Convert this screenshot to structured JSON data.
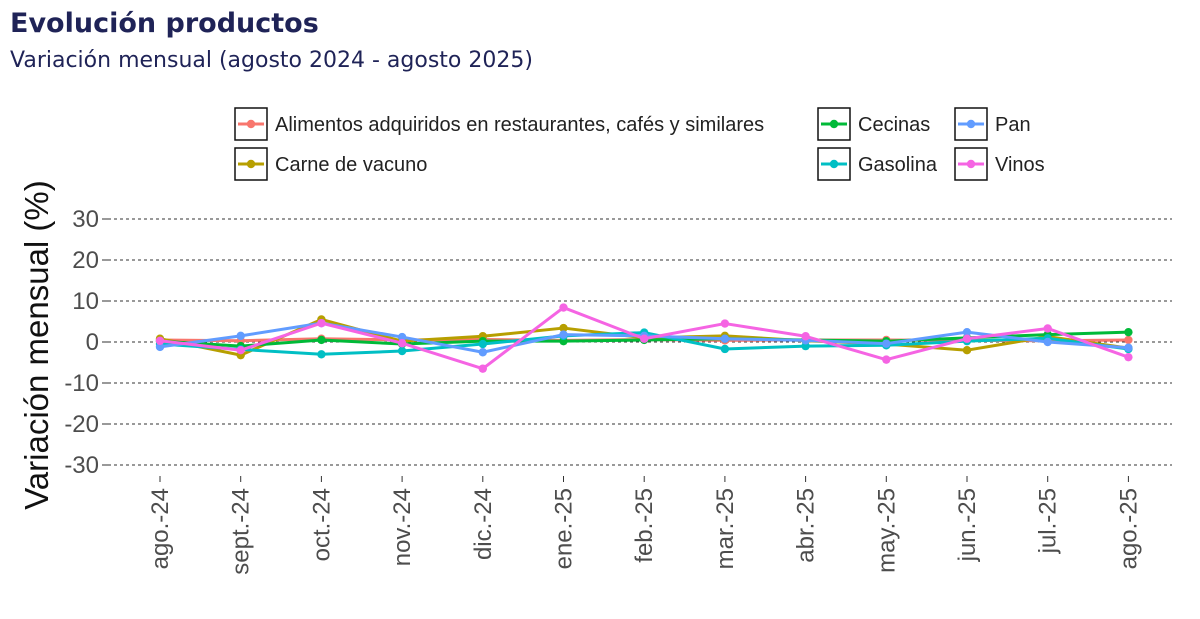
{
  "header": {
    "title": "Evolución productos",
    "subtitle": "Variación mensual (agosto 2024 - agosto 2025)"
  },
  "chart_data": {
    "type": "line",
    "title": "Evolución productos",
    "subtitle": "Variación mensual (agosto 2024 - agosto 2025)",
    "xlabel": "",
    "ylabel": "Variación mensual (%)",
    "ylim": [
      -30,
      30
    ],
    "yticks": [
      "30",
      "20",
      "10",
      "0",
      "-10",
      "-20",
      "-30"
    ],
    "ytick_values": [
      30,
      20,
      10,
      0,
      -10,
      -20,
      -30
    ],
    "grid": "horizontal dotted",
    "legend_position": "top",
    "categories": [
      "ago.-24",
      "sept.-24",
      "oct.-24",
      "nov.-24",
      "dic.-24",
      "ene.-25",
      "feb.-25",
      "mar.-25",
      "abr.-25",
      "may.-25",
      "jun.-25",
      "jul.-25",
      "ago.-25"
    ],
    "series": [
      {
        "name": "Alimentos adquiridos en restaurantes, cafés y similares",
        "color": "#f8766d",
        "values": [
          0.5,
          0.3,
          0.8,
          0.5,
          0.6,
          0.4,
          0.6,
          0.4,
          0.5,
          0.5,
          0.4,
          0.3,
          0.5
        ]
      },
      {
        "name": "Carne de vacuno",
        "color": "#b79f00",
        "values": [
          0.8,
          -3.2,
          5.5,
          0.2,
          1.4,
          3.4,
          1.0,
          1.5,
          0.3,
          -0.5,
          -2.0,
          1.3,
          -1.5
        ]
      },
      {
        "name": "Cecinas",
        "color": "#00ba38",
        "values": [
          0.2,
          -1.0,
          0.5,
          -0.5,
          0.2,
          0.2,
          0.5,
          0.8,
          0.5,
          0.2,
          1.0,
          1.8,
          2.4
        ]
      },
      {
        "name": "Gasolina",
        "color": "#00bfc4",
        "values": [
          -0.5,
          -1.8,
          -3.0,
          -2.2,
          -0.5,
          1.5,
          2.3,
          -1.7,
          -1.0,
          -0.8,
          0.2,
          0.9,
          -1.7
        ]
      },
      {
        "name": "Pan",
        "color": "#619cff",
        "values": [
          -1.2,
          1.5,
          4.6,
          1.2,
          -2.5,
          1.8,
          1.5,
          0.8,
          0.4,
          -0.4,
          2.4,
          0.0,
          -1.4
        ]
      },
      {
        "name": "Vinos",
        "color": "#f564e3",
        "values": [
          0.3,
          -2.0,
          4.6,
          -0.3,
          -6.5,
          8.4,
          0.8,
          4.5,
          1.4,
          -4.3,
          0.8,
          3.3,
          -3.7
        ]
      }
    ]
  }
}
